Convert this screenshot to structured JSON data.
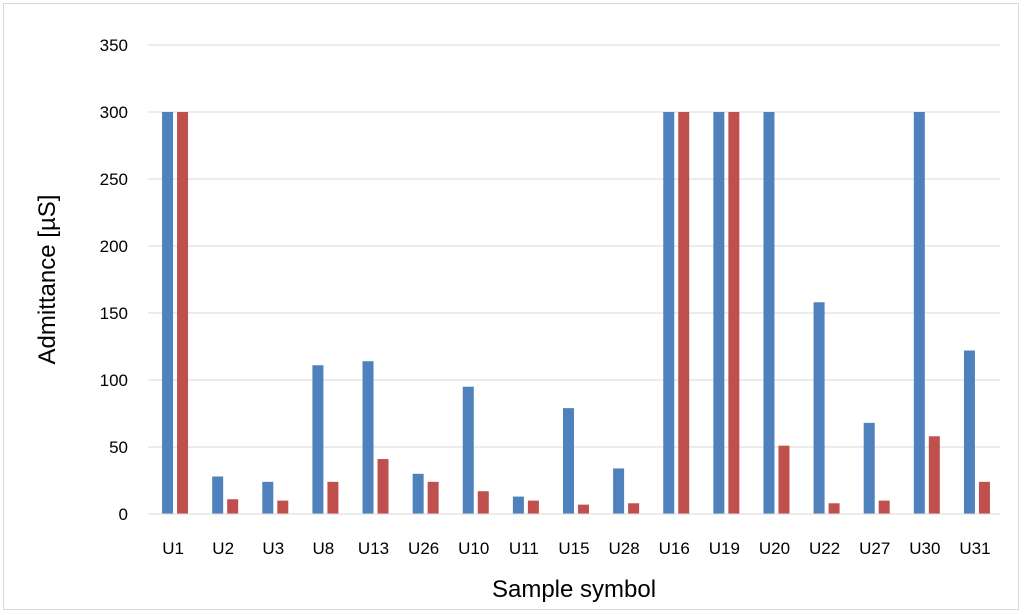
{
  "chart_data": {
    "type": "bar",
    "categories": [
      "U1",
      "U2",
      "U3",
      "U8",
      "U13",
      "U26",
      "U10",
      "U11",
      "U15",
      "U28",
      "U16",
      "U19",
      "U20",
      "U22",
      "U27",
      "U30",
      "U31"
    ],
    "series": [
      {
        "color": "#4f81bd",
        "values": [
          300,
          28,
          24,
          111,
          114,
          30,
          95,
          13,
          79,
          34,
          300,
          300,
          300,
          158,
          68,
          300,
          122
        ]
      },
      {
        "color": "#c0504d",
        "values": [
          300,
          11,
          10,
          24,
          41,
          24,
          17,
          10,
          7,
          8,
          300,
          300,
          51,
          8,
          10,
          58,
          24
        ]
      }
    ],
    "xlabel": "Sample symbol",
    "ylabel": "Admittance [µS]",
    "ylim": [
      0,
      350
    ],
    "yticks": [
      0,
      50,
      100,
      150,
      200,
      250,
      300,
      350
    ],
    "grid": true,
    "legend": "none"
  }
}
